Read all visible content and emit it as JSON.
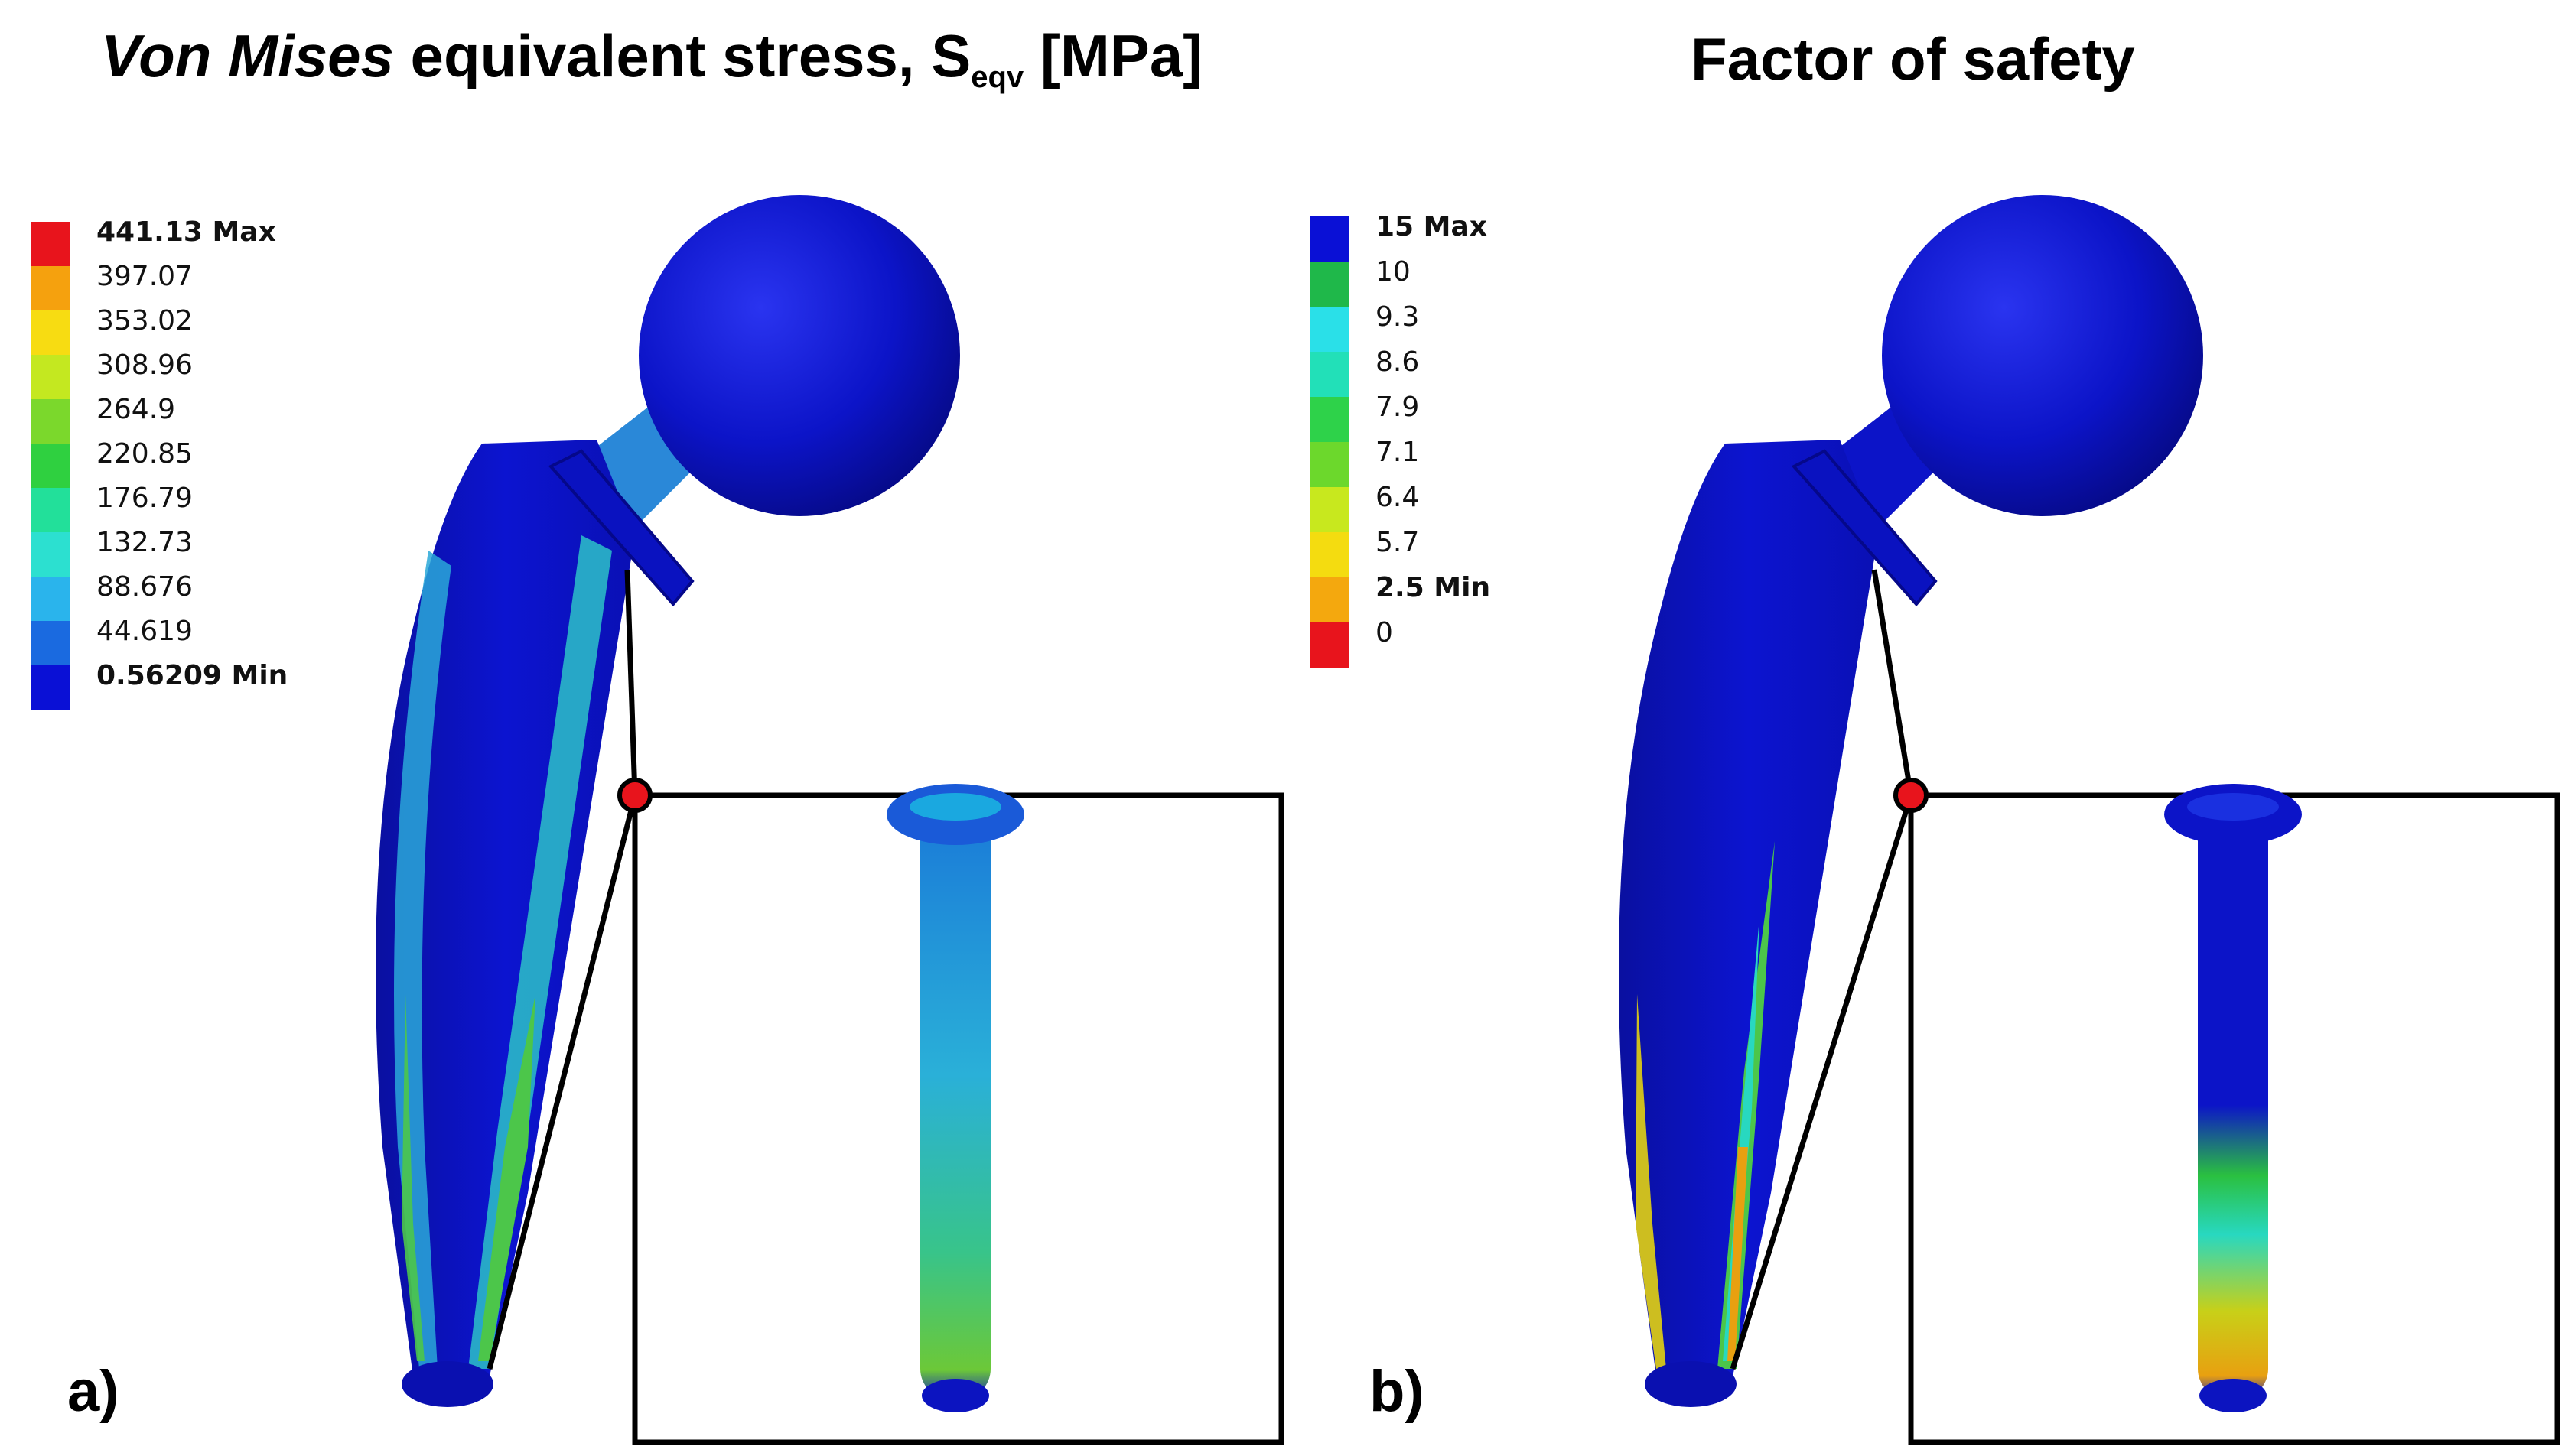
{
  "panel_a": {
    "title_italic": "Von Mises",
    "title_rest": " equivalent stress, S",
    "title_sub": "eqv",
    "title_unit": " [MPa]",
    "label": "a)",
    "legend": [
      {
        "text": "441.13 Max",
        "color": "#e8141c",
        "bold": true
      },
      {
        "text": "397.07",
        "color": "#f5a10e",
        "bold": false
      },
      {
        "text": "353.02",
        "color": "#f7dc12",
        "bold": false
      },
      {
        "text": "308.96",
        "color": "#c4e820",
        "bold": false
      },
      {
        "text": "264.9",
        "color": "#7bd82c",
        "bold": false
      },
      {
        "text": "220.85",
        "color": "#2fd040",
        "bold": false
      },
      {
        "text": "176.79",
        "color": "#22e09a",
        "bold": false
      },
      {
        "text": "132.73",
        "color": "#2ce0d0",
        "bold": false
      },
      {
        "text": "88.676",
        "color": "#2ab4ec",
        "bold": false
      },
      {
        "text": "44.619",
        "color": "#1a6ae0",
        "bold": false
      },
      {
        "text": "0.56209 Min",
        "color": "#0a10d6",
        "bold": true
      }
    ]
  },
  "panel_b": {
    "title": "Factor of safety",
    "label": "b)",
    "legend": [
      {
        "text": "15 Max",
        "color": "#0a10d6",
        "bold": true
      },
      {
        "text": "10",
        "color": "#1fb84a",
        "bold": false
      },
      {
        "text": "9.3",
        "color": "#2ae0e8",
        "bold": false
      },
      {
        "text": "8.6",
        "color": "#22e0b8",
        "bold": false
      },
      {
        "text": "7.9",
        "color": "#2ed24a",
        "bold": false
      },
      {
        "text": "7.1",
        "color": "#6cd82c",
        "bold": false
      },
      {
        "text": "6.4",
        "color": "#c8e81e",
        "bold": false
      },
      {
        "text": "5.7",
        "color": "#f4dc10",
        "bold": false
      },
      {
        "text": "2.5 Min",
        "color": "#f4a80e",
        "bold": true
      },
      {
        "text": "0",
        "color": "#e8141c",
        "bold": false
      }
    ]
  },
  "colors": {
    "implant_blue": "#0b12c8",
    "implant_light": "#2a3ae8",
    "implant_shadow": "#06087a",
    "stress_cyan": "#28b8d8",
    "stress_green": "#4cc64a",
    "stress_yellow": "#e8c81c",
    "marker_red": "#e8141c",
    "frame_black": "#000000"
  }
}
